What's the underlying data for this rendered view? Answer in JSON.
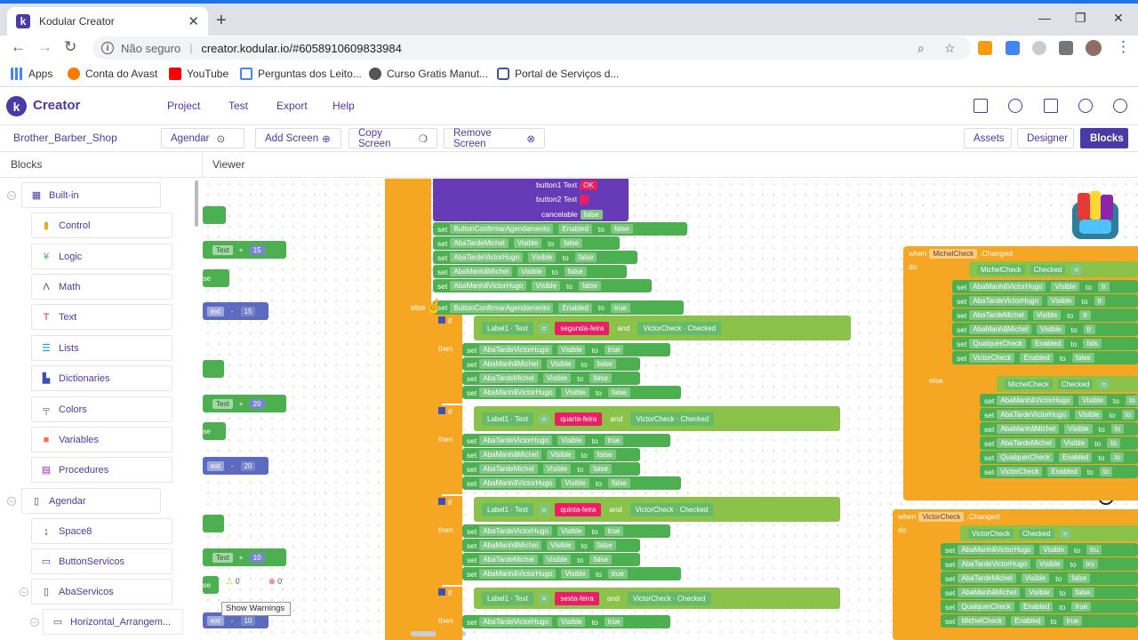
{
  "browser": {
    "tab_title": "Kodular Creator",
    "insecure_label": "Não seguro",
    "url": "creator.kodular.io/#6058910609833984",
    "bookmarks": [
      "Apps",
      "Conta do Avast",
      "YouTube",
      "Perguntas dos Leito...",
      "Curso Gratis Manut...",
      "Portal de Serviços d..."
    ]
  },
  "header": {
    "brand": "Creator",
    "menu": [
      "Project",
      "Test",
      "Export",
      "Help"
    ],
    "icons": [
      "folder-icon",
      "palette-icon",
      "book-icon",
      "dollar-icon",
      "account-icon"
    ]
  },
  "screenbar": {
    "project_name": "Brother_Barber_Shop",
    "screen_select": "Agendar",
    "add_screen": "Add Screen",
    "copy_screen": "Copy Screen",
    "remove_screen": "Remove Screen",
    "assets": "Assets",
    "designer": "Designer",
    "blocks": "Blocks"
  },
  "panels": {
    "blocks_title": "Blocks",
    "viewer_title": "Viewer"
  },
  "tree": {
    "builtin": "Built-in",
    "builtin_items": [
      "Control",
      "Logic",
      "Math",
      "Text",
      "Lists",
      "Dictionaries",
      "Colors",
      "Variables",
      "Procedures"
    ],
    "screen": "Agendar",
    "screen_items": [
      "Space8",
      "ButtonServicos",
      "AbaServicos"
    ],
    "sub_item": "Horizontal_Arrangem..."
  },
  "workspace": {
    "warnings_label": "Show Warnings",
    "warning_count": "0",
    "error_count": "0",
    "left_stub": {
      "text_label": "Text",
      "plus": "+",
      "minus": "-",
      "nums": [
        "15",
        "15",
        "20",
        "20",
        "10",
        "10"
      ],
      "frag_ext": "ext",
      "frag_se": "se"
    },
    "dialog": {
      "button1": "button1 Text",
      "button1_val": "OK",
      "button2": "button2 Text",
      "cancelable": "cancelable",
      "cancel_val": "false"
    },
    "sets1": [
      {
        "comp": "ButtonConfirmarAgendamento",
        "prop": "Enabled",
        "val": "false"
      },
      {
        "comp": "AbaTardeMichel",
        "prop": "Visible",
        "val": "false"
      },
      {
        "comp": "AbaTardeVictorHugo",
        "prop": "Visible",
        "val": "false"
      },
      {
        "comp": "AbaManhãMichel",
        "prop": "Visible",
        "val": "false"
      },
      {
        "comp": "AbaManhãVictorHugo",
        "prop": "Visible",
        "val": "false"
      }
    ],
    "else_label": "else",
    "else_set": {
      "comp": "ButtonConfirmarAgendamento",
      "prop": "Enabled",
      "val": "true"
    },
    "days": [
      {
        "day": "segunda-feira",
        "sets": [
          [
            "AbaTardeVictorHugo",
            "true"
          ],
          [
            "AbaManhãMichel",
            "false"
          ],
          [
            "AbaTardeMichel",
            "false"
          ],
          [
            "AbaManhãVictorHugo",
            "false"
          ]
        ]
      },
      {
        "day": "quarta-feira",
        "sets": [
          [
            "AbaTardeVictorHugo",
            "true"
          ],
          [
            "AbaManhãMichel",
            "false"
          ],
          [
            "AbaTardeMichel",
            "false"
          ],
          [
            "AbaManhãVictorHugo",
            "false"
          ]
        ]
      },
      {
        "day": "quinta-feira",
        "sets": [
          [
            "AbaTardeVictorHugo",
            "true"
          ],
          [
            "AbaManhãMichel",
            "false"
          ],
          [
            "AbaTardeMichel",
            "false"
          ],
          [
            "AbaManhãVictorHugo",
            "true"
          ]
        ]
      },
      {
        "day": "sexta-feira",
        "sets": [
          [
            "AbaTardeVictorHugo",
            "true"
          ]
        ]
      }
    ],
    "kw": {
      "if": "if",
      "then": "then",
      "set": "set",
      "to": "to",
      "and": "and",
      "eq": "=",
      "label1": "Label1",
      "text": "Text",
      "visible": "Visible",
      "victor_check": "VictorCheck",
      "checked": "Checked",
      "when": "when",
      "do": "do",
      "changed": ".Changed",
      "enabled": "Enabled"
    },
    "michel_event": {
      "comp": "MichelCheck",
      "then_sets": [
        "AbaManhãVictorHugo",
        "AbaTardeVictorHugo",
        "AbaTardeMichel",
        "AbaManhãMichel",
        "QualquerCheck",
        "VictorCheck"
      ],
      "then_props": [
        "Visible",
        "Visible",
        "Visible",
        "Visible",
        "Enabled",
        "Enabled"
      ],
      "then_vals": [
        "tr",
        "tr",
        "tr",
        "tr",
        "fals",
        "false"
      ],
      "inner_sets": [
        "AbaManhãVictorHugo",
        "AbaTardeVictorHugo",
        "AbaManhãMichel",
        "AbaTardeMichel",
        "QualquerCheck",
        "VictorCheck"
      ],
      "inner_props": [
        "Visible",
        "Visible",
        "Visible",
        "Visible",
        "Enabled",
        "Enabled"
      ]
    },
    "victor_event": {
      "comp": "VictorCheck",
      "sets": [
        "AbaManhãVictorHugo",
        "AbaTardeVictorHugo",
        "AbaTardeMichel",
        "AbaManhãMichel",
        "QualquerCheck",
        "MichelCheck"
      ],
      "props": [
        "Visible",
        "Visible",
        "Visible",
        "Visible",
        "Enabled",
        "Enabled"
      ],
      "vals": [
        "tru",
        "tru",
        "false",
        "false",
        "true",
        "true"
      ]
    }
  }
}
